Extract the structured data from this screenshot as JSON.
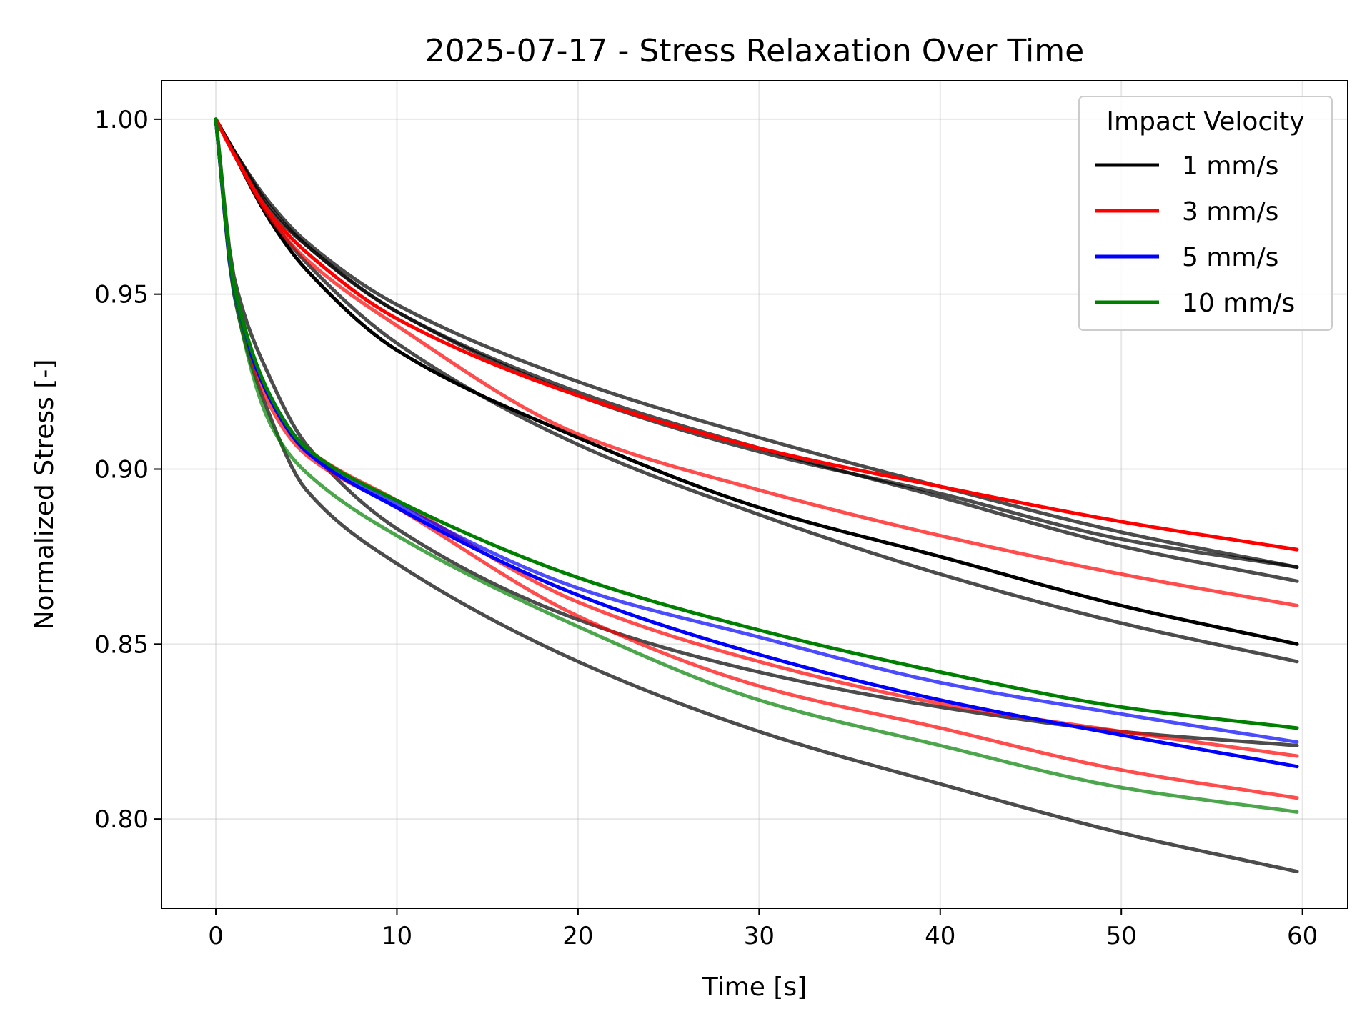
{
  "chart_data": {
    "type": "line",
    "title": "2025-07-17 - Stress Relaxation Over Time",
    "xlabel": "Time [s]",
    "ylabel": "Normalized Stress [-]",
    "xlim": [
      -3,
      62.5
    ],
    "ylim": [
      0.7745,
      1.011
    ],
    "xticks": [
      0,
      10,
      20,
      30,
      40,
      50,
      60
    ],
    "xtick_labels": [
      "0",
      "10",
      "20",
      "30",
      "40",
      "50",
      "60"
    ],
    "yticks": [
      0.8,
      0.85,
      0.9,
      0.95,
      1.0
    ],
    "ytick_labels": [
      "0.80",
      "0.85",
      "0.90",
      "0.95",
      "1.00"
    ],
    "grid": true,
    "legend": {
      "title": "Impact Velocity",
      "placement": "top-right",
      "entries": [
        {
          "label": "1 mm/s",
          "color": "#000000"
        },
        {
          "label": "3 mm/s",
          "color": "#ff0000"
        },
        {
          "label": "5 mm/s",
          "color": "#0000ff"
        },
        {
          "label": "10 mm/s",
          "color": "#008000"
        }
      ]
    },
    "series": [
      {
        "name": "1 mm/s",
        "color": "#000000",
        "opacity": 0.7,
        "x": [
          0,
          1,
          3,
          5,
          10,
          20,
          30,
          40,
          50,
          59.7
        ],
        "values": [
          1.0,
          0.991,
          0.976,
          0.965,
          0.947,
          0.925,
          0.909,
          0.895,
          0.882,
          0.872
        ]
      },
      {
        "name": "1 mm/s",
        "color": "#000000",
        "opacity": 0.7,
        "x": [
          0,
          1,
          3,
          5,
          10,
          20,
          30,
          40,
          50,
          59.7
        ],
        "values": [
          1.0,
          0.991,
          0.975,
          0.964,
          0.945,
          0.922,
          0.906,
          0.892,
          0.878,
          0.868
        ]
      },
      {
        "name": "1 mm/s",
        "color": "#000000",
        "opacity": 0.7,
        "x": [
          0,
          1,
          3,
          5,
          10,
          20,
          30,
          40,
          50,
          59.7
        ],
        "values": [
          1.0,
          0.991,
          0.974,
          0.964,
          0.945,
          0.921,
          0.905,
          0.893,
          0.88,
          0.872
        ]
      },
      {
        "name": "1 mm/s",
        "color": "#000000",
        "opacity": 1.0,
        "x": [
          0,
          1,
          3,
          5,
          10,
          20,
          30,
          40,
          50,
          59.7
        ],
        "values": [
          1.0,
          0.99,
          0.971,
          0.957,
          0.934,
          0.909,
          0.889,
          0.875,
          0.861,
          0.85
        ]
      },
      {
        "name": "1 mm/s",
        "color": "#000000",
        "opacity": 0.7,
        "x": [
          0,
          1,
          3,
          5,
          10,
          20,
          30,
          40,
          50,
          59.7
        ],
        "values": [
          1.0,
          0.99,
          0.972,
          0.959,
          0.936,
          0.907,
          0.887,
          0.87,
          0.856,
          0.845
        ]
      },
      {
        "name": "1 mm/s",
        "color": "#000000",
        "opacity": 0.7,
        "x": [
          0,
          1,
          3,
          5,
          10,
          20,
          30,
          40,
          50,
          59.7
        ],
        "values": [
          1.0,
          0.955,
          0.926,
          0.907,
          0.883,
          0.857,
          0.842,
          0.832,
          0.825,
          0.821
        ]
      },
      {
        "name": "1 mm/s",
        "color": "#000000",
        "opacity": 0.7,
        "x": [
          0,
          1,
          3,
          5,
          10,
          20,
          30,
          40,
          50,
          59.7
        ],
        "values": [
          1.0,
          0.95,
          0.915,
          0.894,
          0.873,
          0.845,
          0.825,
          0.81,
          0.796,
          0.785
        ]
      },
      {
        "name": "3 mm/s",
        "color": "#ff0000",
        "opacity": 1.0,
        "x": [
          0,
          1,
          3,
          5,
          10,
          20,
          30,
          40,
          50,
          59.7
        ],
        "values": [
          1.0,
          0.99,
          0.973,
          0.962,
          0.943,
          0.921,
          0.906,
          0.895,
          0.885,
          0.877
        ]
      },
      {
        "name": "3 mm/s",
        "color": "#ff0000",
        "opacity": 0.7,
        "x": [
          0,
          1,
          3,
          5,
          10,
          20,
          30,
          40,
          50,
          59.7
        ],
        "values": [
          1.0,
          0.99,
          0.972,
          0.96,
          0.941,
          0.91,
          0.894,
          0.881,
          0.87,
          0.861
        ]
      },
      {
        "name": "3 mm/s",
        "color": "#ff0000",
        "opacity": 0.7,
        "x": [
          0,
          1,
          3,
          5,
          10,
          20,
          30,
          40,
          50,
          59.7
        ],
        "values": [
          1.0,
          0.952,
          0.92,
          0.906,
          0.891,
          0.862,
          0.845,
          0.833,
          0.825,
          0.818
        ]
      },
      {
        "name": "3 mm/s",
        "color": "#ff0000",
        "opacity": 0.7,
        "x": [
          0,
          1,
          3,
          5,
          10,
          20,
          30,
          40,
          50,
          59.7
        ],
        "values": [
          1.0,
          0.951,
          0.918,
          0.904,
          0.889,
          0.858,
          0.838,
          0.826,
          0.814,
          0.806
        ]
      },
      {
        "name": "5 mm/s",
        "color": "#0000ff",
        "opacity": 1.0,
        "x": [
          0,
          1,
          3,
          5,
          10,
          20,
          30,
          40,
          50,
          59.7
        ],
        "values": [
          1.0,
          0.951,
          0.92,
          0.905,
          0.889,
          0.864,
          0.847,
          0.834,
          0.824,
          0.815
        ]
      },
      {
        "name": "5 mm/s",
        "color": "#0000ff",
        "opacity": 0.7,
        "x": [
          0,
          1,
          3,
          5,
          10,
          20,
          30,
          40,
          50,
          59.7
        ],
        "values": [
          1.0,
          0.952,
          0.921,
          0.906,
          0.89,
          0.866,
          0.852,
          0.839,
          0.83,
          0.822
        ]
      },
      {
        "name": "10 mm/s",
        "color": "#008000",
        "opacity": 1.0,
        "x": [
          0,
          1,
          3,
          5,
          10,
          20,
          30,
          40,
          50,
          59.7
        ],
        "values": [
          1.0,
          0.953,
          0.921,
          0.906,
          0.891,
          0.869,
          0.854,
          0.842,
          0.832,
          0.826
        ]
      },
      {
        "name": "10 mm/s",
        "color": "#008000",
        "opacity": 0.7,
        "x": [
          0,
          1,
          3,
          5,
          10,
          20,
          30,
          40,
          50,
          59.7
        ],
        "values": [
          1.0,
          0.951,
          0.913,
          0.899,
          0.881,
          0.855,
          0.834,
          0.821,
          0.809,
          0.802
        ]
      }
    ]
  }
}
